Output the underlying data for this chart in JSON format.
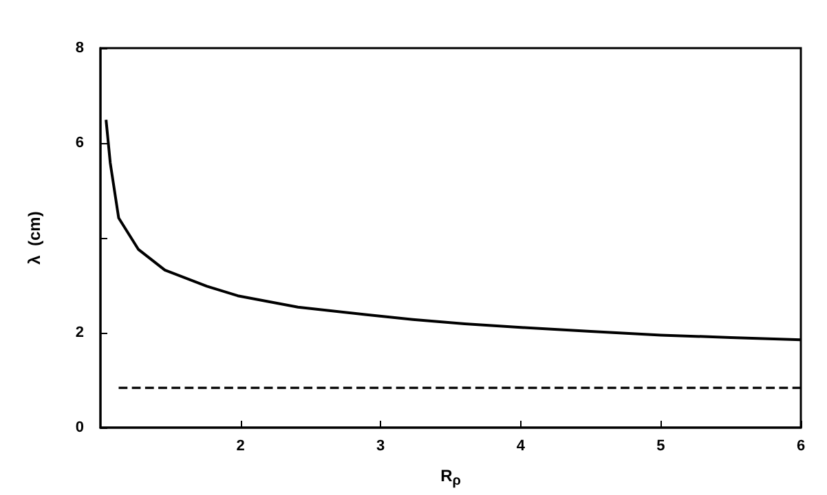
{
  "chart_data": {
    "type": "line",
    "xlabel": "R$_{ρ}$",
    "ylabel": "λ  (cm)",
    "xlim": [
      1,
      6
    ],
    "xticks": [
      2,
      3,
      4,
      5,
      6
    ],
    "ylim": [
      0,
      8
    ],
    "yticks": [
      0,
      2,
      {
        "value": 4,
        "label": null
      },
      6,
      8
    ],
    "grid": false,
    "marker": "none",
    "series": [
      {
        "color": "#000000",
        "line_style": "solid",
        "x": [
          1.04,
          1.07,
          1.13,
          1.27,
          1.46,
          1.76,
          1.98,
          2.41,
          2.9,
          3.23,
          3.6,
          4.02,
          4.5,
          5.0,
          5.5,
          6.0
        ],
        "values": [
          6.49,
          5.58,
          4.42,
          3.76,
          3.32,
          2.98,
          2.78,
          2.54,
          2.38,
          2.28,
          2.19,
          2.11,
          2.03,
          1.95,
          1.9,
          1.85
        ]
      },
      {
        "color": "#000000",
        "line_style": "dashed",
        "x": [
          1.13,
          6.0
        ],
        "values": [
          0.84,
          0.84
        ]
      }
    ]
  }
}
